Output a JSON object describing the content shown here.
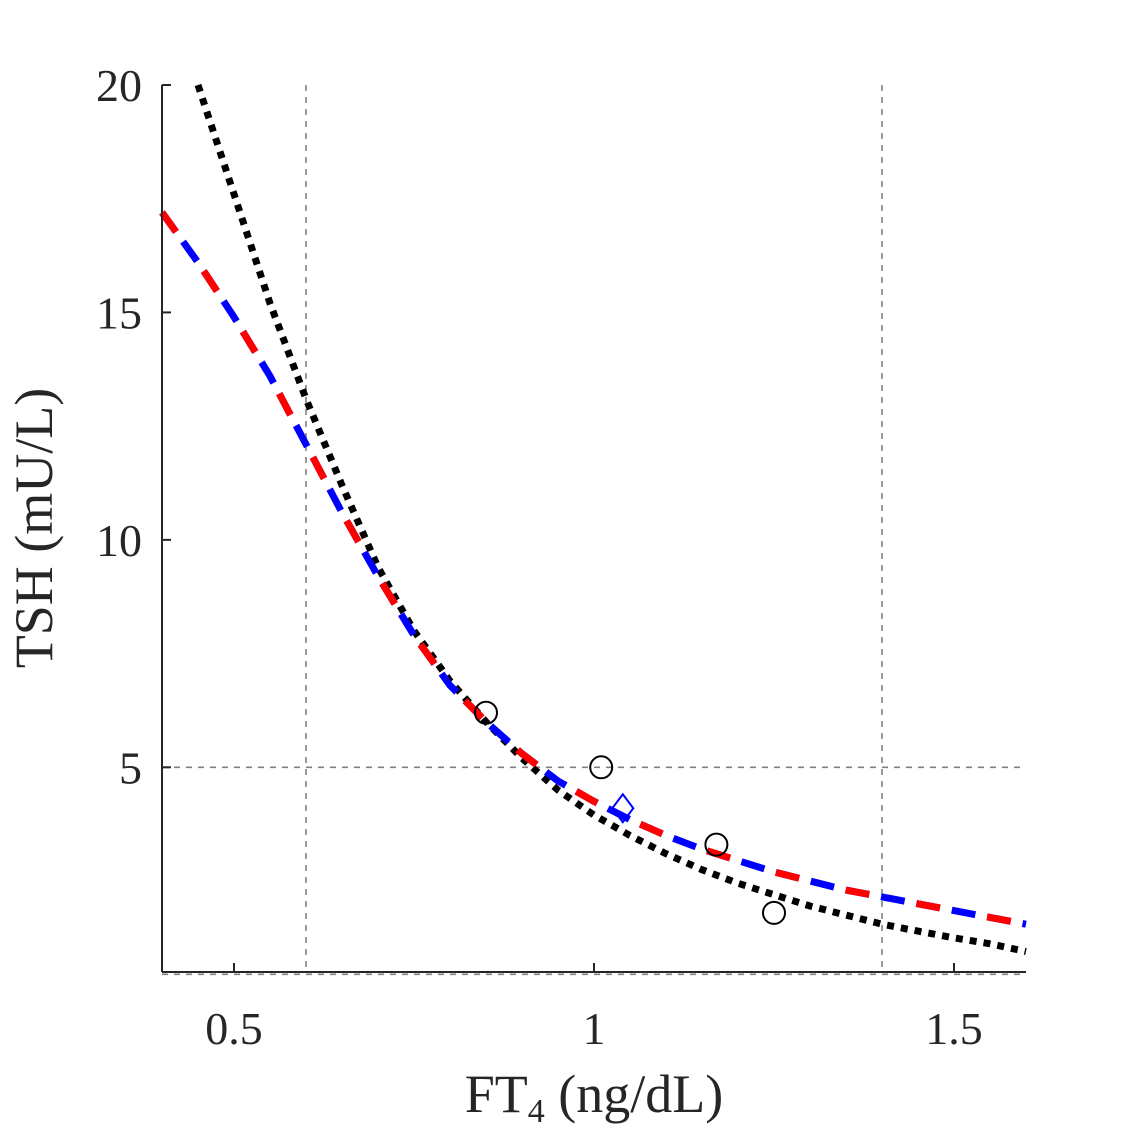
{
  "chart_data": {
    "type": "line",
    "title": "",
    "xlabel": "FT4 (ng/dL)",
    "xlabel_parts": {
      "main": "FT",
      "subscript": "4",
      "rest": " (ng/dL)"
    },
    "ylabel": "TSH (mU/L)",
    "xlim": [
      0.4,
      1.6
    ],
    "ylim": [
      0.5,
      20
    ],
    "x_ticks": [
      0.5,
      1,
      1.5
    ],
    "x_tick_labels": [
      "0.5",
      "1",
      "1.5"
    ],
    "y_ticks": [
      5,
      10,
      15,
      20
    ],
    "y_tick_labels": [
      "5",
      "10",
      "15",
      "20"
    ],
    "reference_lines": {
      "x": [
        0.6,
        1.4
      ],
      "y": [
        0.45,
        5
      ]
    },
    "series": [
      {
        "name": "fit-dotted-black",
        "style": "dotted",
        "color": "#000000",
        "x": [
          0.45,
          0.5,
          0.55,
          0.6,
          0.65,
          0.7,
          0.75,
          0.8,
          0.85,
          0.9,
          0.95,
          1.0,
          1.05,
          1.1,
          1.15,
          1.2,
          1.25,
          1.3,
          1.35,
          1.4,
          1.45,
          1.5,
          1.55,
          1.6
        ],
        "y": [
          20.0,
          17.6,
          15.2,
          13.1,
          11.2,
          9.4,
          8.0,
          6.9,
          6.0,
          5.2,
          4.5,
          3.95,
          3.5,
          3.1,
          2.75,
          2.45,
          2.2,
          1.95,
          1.75,
          1.55,
          1.4,
          1.25,
          1.12,
          0.95
        ]
      },
      {
        "name": "fit-red-blue-dashed",
        "style": "dashed",
        "color": "#ff0000",
        "alt_color": "#0000ff",
        "x": [
          0.4,
          0.45,
          0.5,
          0.55,
          0.6,
          0.65,
          0.7,
          0.75,
          0.8,
          0.85,
          0.9,
          0.95,
          1.0,
          1.05,
          1.1,
          1.15,
          1.2,
          1.25,
          1.3,
          1.35,
          1.4,
          1.45,
          1.5,
          1.55,
          1.6
        ],
        "y": [
          17.2,
          16.1,
          14.9,
          13.6,
          12.1,
          10.6,
          9.2,
          7.9,
          6.8,
          6.0,
          5.3,
          4.7,
          4.25,
          3.85,
          3.5,
          3.2,
          2.95,
          2.7,
          2.5,
          2.3,
          2.15,
          2.0,
          1.85,
          1.7,
          1.55
        ]
      }
    ],
    "observed_points": {
      "name": "observations",
      "marker": "circle",
      "color": "#000000",
      "x": [
        0.85,
        1.01,
        1.17,
        1.25
      ],
      "y": [
        6.2,
        5.0,
        3.3,
        1.8
      ]
    },
    "highlight_point": {
      "name": "setpoint",
      "marker": "diamond",
      "color": "#0000ff",
      "x": 1.04,
      "y": 4.1
    }
  }
}
